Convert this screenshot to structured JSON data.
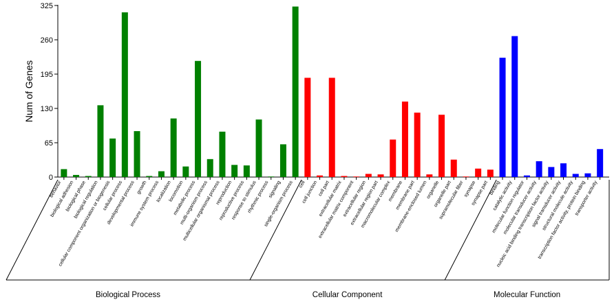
{
  "chart_data": {
    "type": "bar",
    "ylabel": "Num of Genes",
    "ylim": [
      0,
      325
    ],
    "yticks": [
      0,
      65,
      130,
      195,
      260,
      325
    ],
    "grid": false,
    "legend": "none",
    "groups": [
      {
        "name": "Biological Process",
        "color": "#008000",
        "categories": [
          "behavior",
          "biological adhesion",
          "biological phase",
          "biological regulation",
          "cellular component organization or biogenesis",
          "cellular process",
          "developmental process",
          "growth",
          "immune system process",
          "localization",
          "locomotion",
          "metabolic process",
          "multi-organism process",
          "multicellular organismal process",
          "reproduction",
          "reproductive process",
          "response to stimulus",
          "rhythmic process",
          "signaling",
          "single-organism process"
        ],
        "values": [
          15,
          4,
          2,
          136,
          73,
          312,
          87,
          2,
          11,
          111,
          20,
          220,
          34,
          86,
          23,
          22,
          109,
          1,
          62,
          323
        ]
      },
      {
        "name": "Cellular Component",
        "color": "#ff0000",
        "categories": [
          "cell",
          "cell junction",
          "cell part",
          "extracellular matrix",
          "extracellular matrix component",
          "extracellular region",
          "extracellular region part",
          "macromolecular complex",
          "membrane",
          "membrane part",
          "membrane-enclosed lumen",
          "organelle",
          "organelle part",
          "supramolecular fiber",
          "synapse",
          "synapse part"
        ],
        "values": [
          188,
          3,
          188,
          2,
          1,
          6,
          5,
          71,
          143,
          122,
          5,
          118,
          33,
          1,
          16,
          14
        ]
      },
      {
        "name": "Molecular Function",
        "color": "#0000ff",
        "categories": [
          "binding",
          "catalytic activity",
          "molecular function regulator",
          "molecular transducer activity",
          "nucleic acid binding transcription factor activity",
          "signal transducer activity",
          "structural molecule activity",
          "transcription factor activity, protein binding",
          "transporter activity"
        ],
        "values": [
          226,
          267,
          3,
          30,
          19,
          26,
          6,
          7,
          53
        ]
      }
    ]
  }
}
